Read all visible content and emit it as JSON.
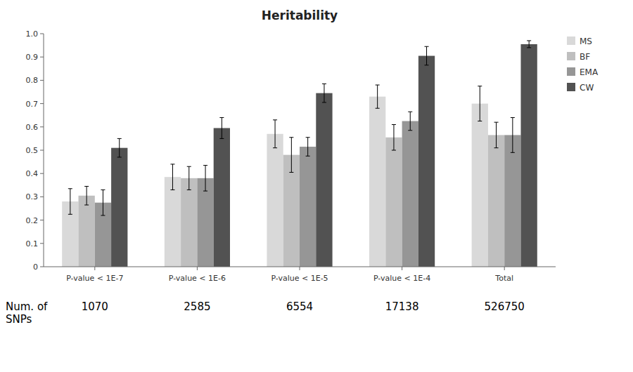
{
  "chart_data": {
    "type": "bar",
    "title": "Heritability",
    "categories": [
      "P-value < 1E-7",
      "P-value < 1E-6",
      "P-value < 1E-5",
      "P-value < 1E-4",
      "Total"
    ],
    "series": [
      {
        "name": "MS",
        "color": "#d9d9d9",
        "values": [
          0.28,
          0.385,
          0.57,
          0.73,
          0.7
        ],
        "errors": [
          0.055,
          0.055,
          0.06,
          0.05,
          0.075
        ]
      },
      {
        "name": "BF",
        "color": "#bfbfbf",
        "values": [
          0.305,
          0.38,
          0.48,
          0.555,
          0.565
        ],
        "errors": [
          0.04,
          0.05,
          0.075,
          0.055,
          0.055
        ]
      },
      {
        "name": "EMA",
        "color": "#969696",
        "values": [
          0.275,
          0.38,
          0.515,
          0.625,
          0.565
        ],
        "errors": [
          0.055,
          0.055,
          0.04,
          0.04,
          0.075
        ]
      },
      {
        "name": "CW",
        "color": "#525252",
        "values": [
          0.51,
          0.595,
          0.745,
          0.905,
          0.955
        ],
        "errors": [
          0.04,
          0.045,
          0.04,
          0.04,
          0.015
        ]
      }
    ],
    "snp_label": "Num. of\nSNPs",
    "snp_counts": [
      1070,
      2585,
      6554,
      17138,
      526750
    ],
    "ylim": [
      0,
      1.0
    ],
    "yticks": [
      0,
      0.1,
      0.2,
      0.3,
      0.4,
      0.5,
      0.6,
      0.7,
      0.8,
      0.9,
      {
        "value": 1.0,
        "label": "1.0"
      }
    ],
    "grid": false,
    "legend": "right"
  }
}
